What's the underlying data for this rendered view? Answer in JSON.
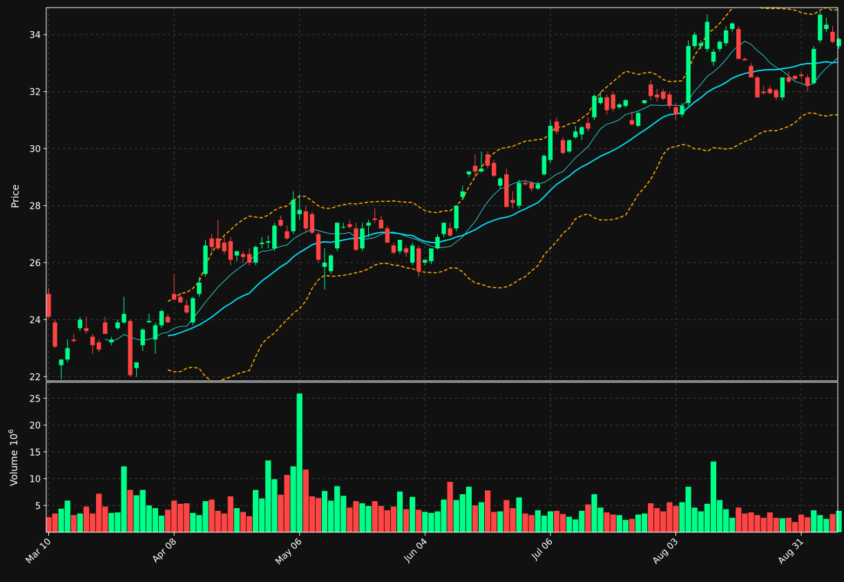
{
  "chart_data": {
    "type": "candlestick",
    "title": "",
    "ylabel_price": "Price",
    "ylabel_volume": "Volume",
    "volume_exponent_label": "10",
    "volume_exponent_sup": "6",
    "x_tick_labels": [
      "Mar 10",
      "Apr 08",
      "May 06",
      "Jun 04",
      "Jul 06",
      "Aug 03",
      "Aug 31"
    ],
    "x_tick_indices": [
      0,
      20,
      40,
      60,
      80,
      100,
      120
    ],
    "price_ylim": [
      21.85,
      34.95
    ],
    "price_ticks": [
      22,
      24,
      26,
      28,
      30,
      32,
      34
    ],
    "volume_ylim": [
      0,
      28
    ],
    "volume_ticks": [
      5,
      10,
      15,
      20,
      25
    ],
    "grid": true,
    "moving_averages": [
      "short (thin cyan)",
      "long (thick cyan)"
    ],
    "bollinger_bands": true,
    "colors": {
      "background": "#111111",
      "up": "#00ff88",
      "down": "#ff4444",
      "ma_short": "#33dddd",
      "ma_long": "#00e5ff",
      "bollinger": "#ffa500",
      "grid": "#3a3a3a",
      "frame": "#ffffff",
      "text": "#ffffff"
    },
    "candles": [
      [
        24.9,
        25.1,
        24.05,
        24.1,
        2.8
      ],
      [
        23.9,
        24.0,
        23.0,
        23.05,
        3.5
      ],
      [
        22.4,
        22.6,
        21.9,
        22.6,
        4.4
      ],
      [
        22.6,
        23.3,
        22.5,
        23.0,
        5.9
      ],
      [
        23.3,
        23.5,
        23.2,
        23.25,
        3.2
      ],
      [
        23.7,
        24.1,
        23.6,
        24.0,
        3.5
      ],
      [
        23.7,
        24.1,
        23.5,
        23.6,
        4.8
      ],
      [
        23.4,
        23.5,
        22.8,
        23.1,
        3.5
      ],
      [
        23.2,
        23.3,
        22.85,
        22.95,
        7.2
      ],
      [
        23.9,
        24.1,
        23.5,
        23.5,
        4.8
      ],
      [
        23.2,
        23.4,
        23.1,
        23.3,
        3.6
      ],
      [
        23.7,
        24.0,
        23.65,
        23.9,
        3.7
      ],
      [
        23.9,
        24.8,
        23.85,
        24.2,
        12.3
      ],
      [
        23.95,
        24.0,
        22.0,
        22.05,
        7.9
      ],
      [
        22.3,
        22.5,
        22.0,
        22.5,
        6.9
      ],
      [
        23.1,
        23.7,
        22.9,
        23.65,
        7.9
      ],
      [
        23.9,
        24.2,
        23.9,
        23.95,
        5.0
      ],
      [
        23.3,
        23.9,
        22.8,
        23.8,
        4.5
      ],
      [
        23.8,
        24.35,
        23.7,
        24.3,
        3.1
      ],
      [
        24.1,
        24.2,
        23.9,
        23.9,
        4.2
      ],
      [
        24.9,
        25.6,
        24.7,
        24.7,
        5.9
      ],
      [
        24.8,
        24.95,
        24.6,
        24.6,
        5.3
      ],
      [
        24.5,
        24.7,
        24.2,
        24.25,
        5.4
      ],
      [
        23.9,
        24.8,
        23.8,
        24.75,
        3.6
      ],
      [
        24.9,
        25.5,
        24.8,
        25.3,
        3.2
      ],
      [
        25.6,
        26.8,
        25.5,
        26.6,
        5.8
      ],
      [
        26.85,
        27.0,
        26.4,
        26.55,
        6.1
      ],
      [
        26.85,
        27.5,
        26.45,
        26.5,
        4.0
      ],
      [
        26.7,
        26.9,
        26.3,
        26.4,
        3.5
      ],
      [
        26.75,
        26.9,
        25.9,
        26.1,
        6.7
      ],
      [
        26.25,
        26.4,
        26.05,
        26.4,
        4.5
      ],
      [
        26.3,
        26.4,
        26.0,
        26.2,
        3.8
      ],
      [
        26.3,
        26.5,
        25.9,
        26.0,
        3.0
      ],
      [
        26.0,
        26.6,
        25.9,
        26.55,
        7.9
      ],
      [
        26.65,
        26.9,
        26.5,
        26.7,
        6.3
      ],
      [
        26.7,
        26.95,
        26.5,
        26.75,
        13.4
      ],
      [
        26.5,
        27.4,
        26.4,
        27.3,
        9.9
      ],
      [
        27.5,
        27.65,
        27.25,
        27.3,
        7.0
      ],
      [
        27.1,
        27.3,
        26.8,
        26.85,
        10.7
      ],
      [
        27.1,
        28.5,
        27.0,
        28.2,
        12.3
      ],
      [
        27.7,
        28.4,
        27.5,
        27.85,
        25.9
      ],
      [
        27.8,
        28.0,
        27.1,
        27.2,
        11.7
      ],
      [
        27.7,
        27.8,
        27.0,
        27.05,
        6.7
      ],
      [
        27.0,
        27.1,
        26.0,
        26.1,
        6.4
      ],
      [
        25.85,
        26.5,
        25.05,
        26.0,
        7.7
      ],
      [
        25.7,
        26.3,
        25.6,
        26.25,
        5.9
      ],
      [
        26.5,
        27.4,
        26.4,
        27.4,
        8.6
      ],
      [
        27.25,
        27.4,
        27.2,
        27.25,
        6.8
      ],
      [
        27.35,
        27.5,
        27.2,
        27.25,
        4.6
      ],
      [
        27.2,
        27.4,
        26.4,
        26.45,
        5.8
      ],
      [
        26.5,
        27.4,
        26.4,
        27.2,
        5.4
      ],
      [
        27.3,
        27.5,
        26.9,
        27.4,
        4.9
      ],
      [
        27.55,
        27.9,
        27.4,
        27.5,
        5.8
      ],
      [
        27.5,
        27.65,
        27.2,
        27.2,
        4.9
      ],
      [
        27.2,
        27.3,
        26.7,
        26.7,
        4.1
      ],
      [
        26.6,
        26.7,
        26.3,
        26.35,
        4.8
      ],
      [
        26.4,
        26.8,
        26.3,
        26.8,
        7.6
      ],
      [
        26.5,
        26.6,
        26.2,
        26.35,
        4.3
      ],
      [
        26.0,
        26.7,
        25.9,
        26.6,
        6.6
      ],
      [
        26.5,
        26.6,
        25.5,
        25.7,
        4.2
      ],
      [
        26.0,
        26.1,
        25.9,
        26.1,
        3.8
      ],
      [
        26.05,
        26.5,
        25.95,
        26.5,
        3.6
      ],
      [
        26.5,
        27.0,
        26.45,
        26.9,
        3.9
      ],
      [
        27.0,
        27.4,
        26.9,
        27.4,
        6.1
      ],
      [
        27.2,
        27.4,
        26.9,
        26.95,
        9.4
      ],
      [
        27.2,
        28.0,
        27.1,
        28.0,
        6.0
      ],
      [
        28.3,
        28.7,
        28.2,
        28.5,
        7.1
      ],
      [
        29.1,
        29.2,
        29.0,
        29.2,
        8.5
      ],
      [
        29.4,
        29.8,
        29.0,
        29.2,
        5.0
      ],
      [
        29.2,
        29.9,
        29.15,
        29.3,
        5.6
      ],
      [
        29.8,
        29.9,
        29.3,
        29.4,
        7.8
      ],
      [
        29.5,
        29.6,
        29.0,
        29.05,
        3.8
      ],
      [
        28.7,
        29.0,
        28.6,
        28.95,
        3.9
      ],
      [
        29.1,
        29.3,
        28.0,
        27.95,
        6.0
      ],
      [
        28.2,
        28.5,
        27.9,
        28.1,
        4.5
      ],
      [
        28.0,
        28.9,
        27.9,
        28.8,
        6.5
      ],
      [
        28.8,
        28.9,
        28.7,
        28.75,
        3.5
      ],
      [
        28.8,
        28.85,
        28.5,
        28.6,
        3.2
      ],
      [
        28.6,
        28.85,
        28.55,
        28.75,
        4.1
      ],
      [
        29.1,
        29.8,
        29.05,
        29.75,
        3.1
      ],
      [
        29.6,
        31.0,
        29.5,
        30.8,
        3.9
      ],
      [
        30.95,
        31.1,
        30.5,
        30.6,
        4.0
      ],
      [
        30.3,
        30.4,
        29.8,
        29.85,
        3.4
      ],
      [
        29.9,
        30.3,
        29.85,
        30.3,
        2.9
      ],
      [
        30.4,
        30.8,
        30.35,
        30.6,
        2.4
      ],
      [
        30.5,
        30.8,
        30.3,
        30.75,
        4.0
      ],
      [
        30.9,
        31.1,
        30.6,
        30.7,
        5.2
      ],
      [
        31.1,
        31.9,
        31.0,
        31.85,
        7.1
      ],
      [
        31.6,
        32.0,
        31.55,
        31.8,
        4.6
      ],
      [
        31.8,
        31.9,
        31.2,
        31.35,
        3.7
      ],
      [
        31.9,
        32.0,
        31.3,
        31.4,
        3.3
      ],
      [
        31.45,
        31.6,
        31.4,
        31.55,
        3.2
      ],
      [
        31.5,
        31.75,
        31.45,
        31.7,
        2.3
      ],
      [
        31.0,
        31.3,
        30.8,
        30.85,
        2.5
      ],
      [
        30.8,
        31.3,
        30.75,
        31.25,
        3.3
      ],
      [
        31.6,
        31.7,
        31.55,
        31.7,
        3.5
      ],
      [
        32.25,
        32.4,
        31.7,
        31.85,
        5.4
      ],
      [
        31.9,
        32.1,
        31.65,
        31.8,
        4.5
      ],
      [
        32.0,
        32.1,
        31.7,
        31.75,
        3.9
      ],
      [
        31.9,
        32.0,
        31.4,
        31.5,
        5.6
      ],
      [
        31.45,
        31.6,
        31.0,
        31.2,
        4.9
      ],
      [
        31.2,
        31.6,
        31.1,
        31.5,
        5.6
      ],
      [
        31.6,
        33.8,
        31.5,
        33.6,
        8.5
      ],
      [
        33.6,
        34.1,
        33.5,
        34.0,
        4.6
      ],
      [
        33.6,
        33.8,
        33.5,
        33.7,
        3.9
      ],
      [
        33.5,
        34.7,
        33.4,
        34.45,
        5.3
      ],
      [
        33.05,
        33.5,
        32.9,
        33.4,
        13.2
      ],
      [
        33.5,
        33.8,
        33.4,
        33.75,
        6.0
      ],
      [
        33.7,
        34.3,
        33.6,
        34.15,
        4.3
      ],
      [
        34.2,
        34.4,
        34.1,
        34.4,
        2.7
      ],
      [
        34.2,
        34.3,
        33.2,
        33.15,
        4.6
      ],
      [
        33.15,
        33.2,
        33.1,
        33.1,
        3.5
      ],
      [
        32.9,
        33.0,
        32.5,
        32.5,
        3.7
      ],
      [
        32.5,
        32.55,
        31.8,
        31.8,
        3.2
      ],
      [
        32.0,
        32.2,
        31.9,
        31.95,
        2.7
      ],
      [
        32.1,
        32.2,
        31.9,
        31.95,
        3.7
      ],
      [
        32.05,
        32.1,
        31.7,
        31.8,
        2.7
      ],
      [
        31.8,
        32.5,
        31.7,
        32.5,
        2.6
      ],
      [
        32.5,
        32.7,
        32.3,
        32.35,
        2.7
      ],
      [
        32.55,
        32.6,
        32.4,
        32.45,
        1.9
      ],
      [
        32.6,
        32.7,
        32.45,
        32.55,
        3.3
      ],
      [
        32.5,
        32.6,
        32.0,
        32.2,
        2.8
      ],
      [
        32.3,
        33.6,
        32.25,
        33.5,
        4.1
      ],
      [
        33.8,
        34.8,
        33.7,
        34.7,
        3.2
      ],
      [
        34.2,
        34.6,
        34.1,
        34.35,
        2.5
      ],
      [
        34.1,
        34.3,
        33.7,
        33.75,
        3.4
      ],
      [
        33.6,
        33.9,
        33.5,
        33.85,
        4.0
      ]
    ]
  }
}
